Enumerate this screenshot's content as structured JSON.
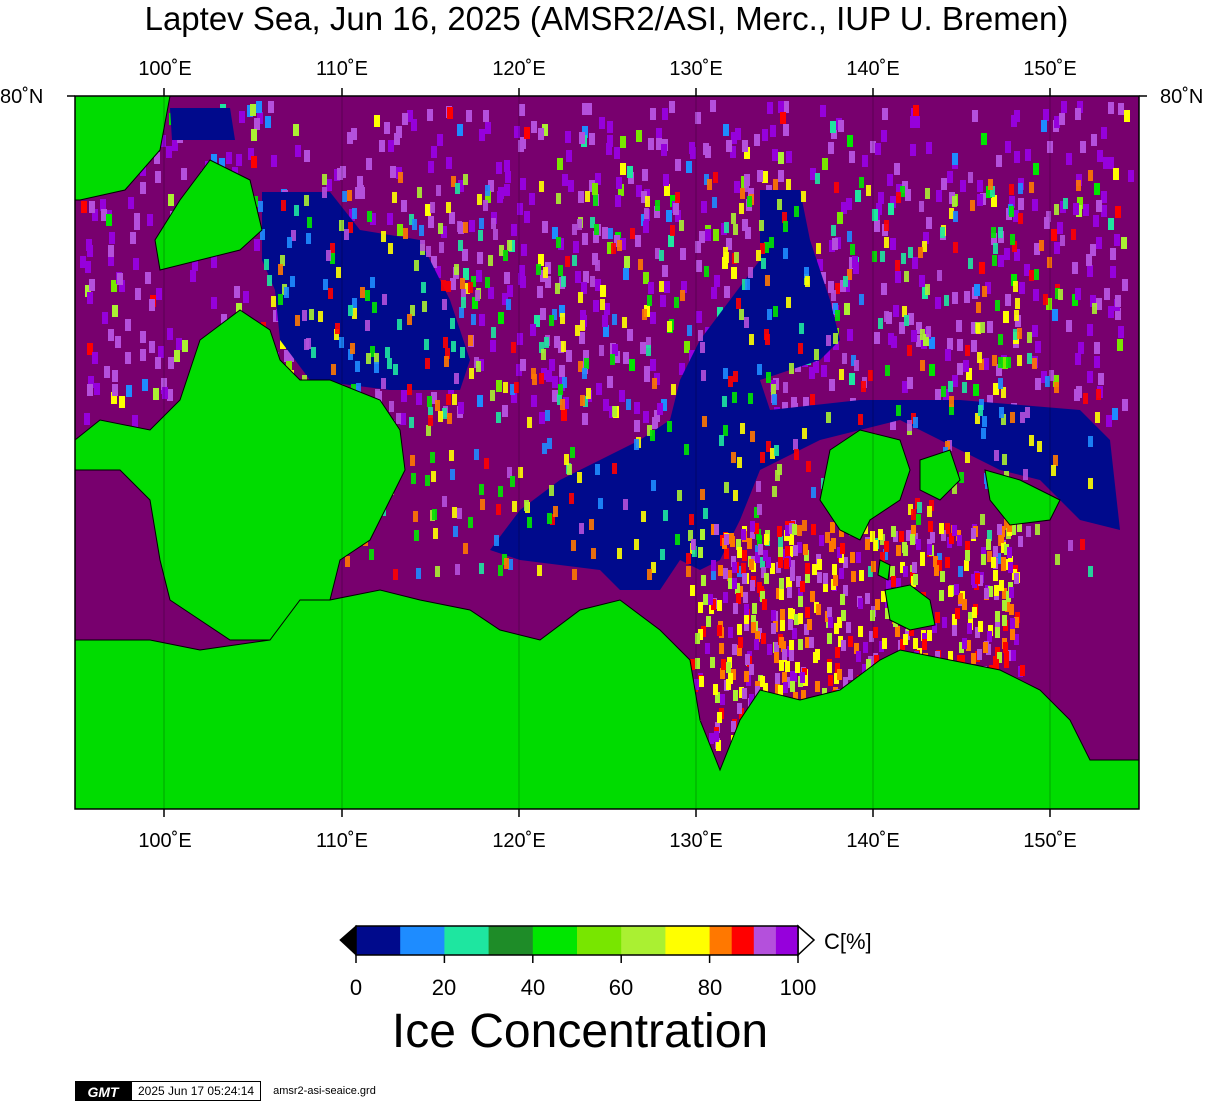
{
  "title": "Laptev Sea, Jun 16, 2025 (AMSR2/ASI, Merc., IUP U. Bremen)",
  "lon_ticks": [
    "100˚E",
    "110˚E",
    "120˚E",
    "130˚E",
    "140˚E",
    "150˚E"
  ],
  "lat_label": "80˚N",
  "colorbar": {
    "title": "Ice Concentration",
    "unit": "C[%]",
    "tick_labels": [
      "0",
      "20",
      "40",
      "60",
      "80",
      "100"
    ],
    "colors": [
      "#000a8c",
      "#1e8cff",
      "#1ee6a0",
      "#1e8c28",
      "#00e600",
      "#78e600",
      "#aaf032",
      "#ffff00",
      "#ff7800",
      "#ff0000",
      "#b450dc",
      "#9600dc"
    ],
    "land_color": "#00dc00",
    "open_water_color": "#78006e"
  },
  "footer": {
    "logo": "GMT",
    "timestamp": "2025 Jun 17 05:24:14",
    "filename": "amsr2-asi-seaice.grd"
  }
}
